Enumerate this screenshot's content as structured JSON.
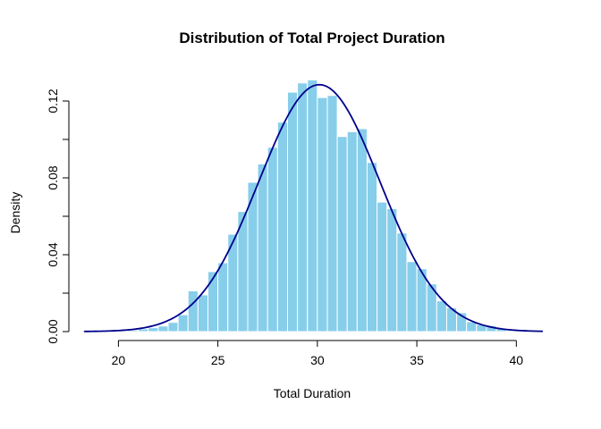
{
  "title": "Distribution of Total Project Duration",
  "x_axis": {
    "label": "Total Duration",
    "ticks": [
      "20",
      "25",
      "30",
      "35",
      "40"
    ],
    "tick_values": [
      20,
      25,
      30,
      35,
      40
    ]
  },
  "y_axis": {
    "label": "Density",
    "tick_values": [
      0,
      0.02,
      0.04,
      0.06,
      0.08,
      0.1,
      0.12
    ],
    "labeled_ticks": [
      {
        "value": 0.0,
        "label": "0.00"
      },
      {
        "value": 0.04,
        "label": "0.04"
      },
      {
        "value": 0.08,
        "label": "0.08"
      },
      {
        "value": 0.12,
        "label": "0.12"
      }
    ]
  },
  "chart_data": {
    "type": "bar",
    "subtype": "histogram-with-density-curve",
    "title": "Distribution of Total Project Duration",
    "xlabel": "Total Duration",
    "ylabel": "Density",
    "xlim": [
      18.5,
      41.5
    ],
    "ylim": [
      0,
      0.133
    ],
    "grid": "off",
    "legend": "none",
    "bin_width": 0.5,
    "bin_starts": [
      20.5,
      21.0,
      21.5,
      22.0,
      22.5,
      23.0,
      23.5,
      24.0,
      24.5,
      25.0,
      25.5,
      26.0,
      26.5,
      27.0,
      27.5,
      28.0,
      28.5,
      29.0,
      29.5,
      30.0,
      30.5,
      31.0,
      31.5,
      32.0,
      32.5,
      33.0,
      33.5,
      34.0,
      34.5,
      35.0,
      35.5,
      36.0,
      36.5,
      37.0,
      37.5,
      38.0,
      38.5,
      39.0
    ],
    "densities": [
      0.0008,
      0.0014,
      0.002,
      0.0029,
      0.0048,
      0.0088,
      0.0212,
      0.0191,
      0.0312,
      0.0358,
      0.0507,
      0.0625,
      0.0777,
      0.0873,
      0.0959,
      0.109,
      0.1246,
      0.1294,
      0.131,
      0.1218,
      0.1229,
      0.1015,
      0.104,
      0.1056,
      0.088,
      0.0674,
      0.064,
      0.0513,
      0.0364,
      0.0327,
      0.0248,
      0.016,
      0.0124,
      0.0098,
      0.0051,
      0.0036,
      0.0031,
      0.0015
    ],
    "curve": {
      "shape": "normal",
      "mean": 30.1,
      "sd": 3.05,
      "peak_density": 0.1285,
      "x_range": [
        18.3,
        41.3
      ]
    }
  },
  "colors": {
    "bar_fill": "#87CEEB",
    "bar_border": "#FFFFFF",
    "curve": "#00008B",
    "axis": "#000000",
    "text": "#000000",
    "background": "#FFFFFF"
  }
}
